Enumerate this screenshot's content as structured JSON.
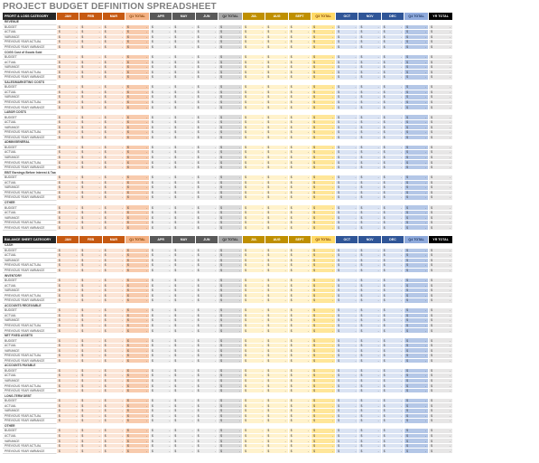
{
  "title": "PROJECT BUDGET DEFINITION SPREADSHEET",
  "months": [
    "JAN",
    "FEB",
    "MAR",
    "Q1 TOTAL",
    "APR",
    "MAY",
    "JUN",
    "Q2 TOTAL",
    "JUL",
    "AUG",
    "SEPT",
    "Q3 TOTAL",
    "OCT",
    "NOV",
    "DEC",
    "Q4 TOTAL",
    "YR TOTAL"
  ],
  "header_colors": [
    "#c65911",
    "#c65911",
    "#c65911",
    "#f4b183",
    "#595959",
    "#595959",
    "#595959",
    "#a6a6a6",
    "#bf8f00",
    "#bf8f00",
    "#bf8f00",
    "#ffd966",
    "#2f5597",
    "#2f5597",
    "#2f5597",
    "#8faadc",
    "#000000"
  ],
  "cell_colors": {
    "orange": [
      "#fbe4d5",
      "#f8cbad"
    ],
    "gray": [
      "#ededed",
      "#dbdbdb"
    ],
    "gold": [
      "#fff2cc",
      "#ffe699"
    ],
    "blue": [
      "#dae3f3",
      "#b4c7e7"
    ],
    "year": [
      "#f2f2f2",
      "#e7e6e6"
    ]
  },
  "row_labels": [
    "BUDGET",
    "ACTUAL",
    "VARIANCE",
    "PREVIOUS YEAR ACTUAL",
    "PREVIOUS YEAR VARIANCE"
  ],
  "currency": "$",
  "dash": "-",
  "sections": [
    {
      "header_label": "PROFIT & LOSS CATEGORY",
      "categories": [
        "REVENUE",
        "COGS Cost of Goods Sold",
        "SALES/MARKETING COSTS",
        "LABOR COSTS",
        "ADMIN/GENERAL",
        "EBIT Earnings Before Interest & Taxes",
        "OTHER"
      ]
    },
    {
      "header_label": "BALANCE SHEET CATEGORY",
      "categories": [
        "CASH",
        "INVENTORY",
        "ACCOUNTS RECEIVABLE",
        "NET FIXED ASSETS",
        "ACCOUNTS PAYABLE",
        "LONG-TERM DEBT",
        "OTHER"
      ]
    }
  ]
}
